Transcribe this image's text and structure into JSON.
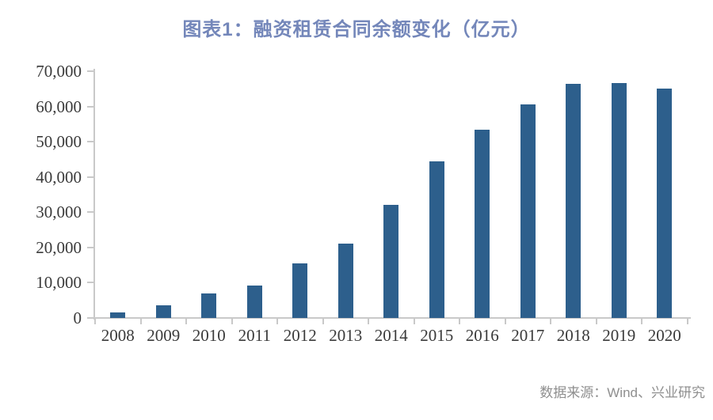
{
  "header": {
    "title": "图表1：融资租赁合同余额变化（亿元）"
  },
  "footer": {
    "source": "数据来源：Wind、兴业研究"
  },
  "colors": {
    "bar": "#2d5f8c",
    "title": "#7487ba",
    "axis": "#c9c9c9",
    "text": "#3a3a3a",
    "source": "#8f8f8f"
  },
  "chart_data": {
    "type": "bar",
    "title": "图表1：融资租赁合同余额变化（亿元）",
    "unit": "亿元",
    "categories": [
      "2008",
      "2009",
      "2010",
      "2011",
      "2012",
      "2013",
      "2014",
      "2015",
      "2016",
      "2017",
      "2018",
      "2019",
      "2020"
    ],
    "values": [
      1550,
      3700,
      7000,
      9300,
      15500,
      21000,
      32000,
      44400,
      53300,
      60600,
      66500,
      66540,
      65040
    ],
    "xlabel": "",
    "ylabel": "",
    "ylim": [
      0,
      70000
    ],
    "ytick_values": [
      0,
      10000,
      20000,
      30000,
      40000,
      50000,
      60000,
      70000
    ],
    "ytick_labels": [
      "0",
      "10,000",
      "20,000",
      "30,000",
      "40,000",
      "50,000",
      "60,000",
      "70,000"
    ],
    "grid": false,
    "legend": false,
    "source": "数据来源：Wind、兴业研究"
  }
}
